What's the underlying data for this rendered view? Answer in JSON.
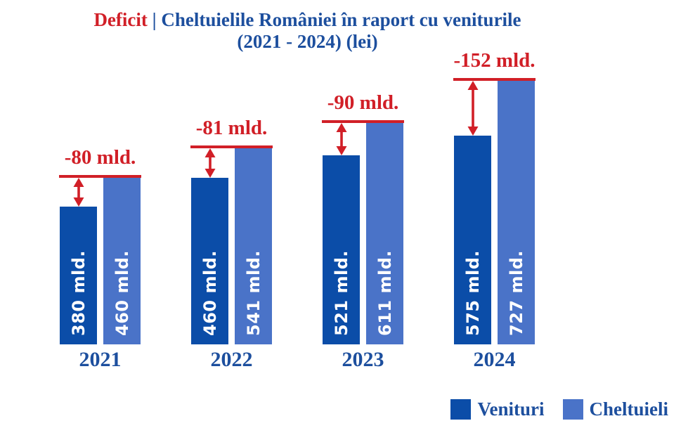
{
  "page": {
    "background": "#ffffff"
  },
  "title": {
    "deficit_word": "Deficit",
    "separator": " | ",
    "main": "Cheltuielile României în raport cu veniturile",
    "subtitle": "(2021 - 2024) (lei)"
  },
  "colors": {
    "deficit_red": "#d11f27",
    "title_blue": "#1d4f9e",
    "venituri_blue": "#0b4da8",
    "cheltuieli_blue": "#4a73c8",
    "bar_label_white": "#ffffff"
  },
  "chart_data": {
    "type": "bar",
    "title": "Deficit | Cheltuielile României în raport cu veniturile (2021 - 2024) (lei)",
    "categories": [
      "2021",
      "2022",
      "2023",
      "2024"
    ],
    "series": [
      {
        "name": "Venituri",
        "color": "#0b4da8",
        "values": [
          380,
          460,
          521,
          575
        ],
        "value_labels": [
          "380 mld.",
          "460 mld.",
          "521 mld.",
          "575 mld."
        ]
      },
      {
        "name": "Cheltuieli",
        "color": "#4a73c8",
        "values": [
          460,
          541,
          611,
          727
        ],
        "value_labels": [
          "460 mld.",
          "541 mld.",
          "611 mld.",
          "727 mld."
        ]
      }
    ],
    "deficit_annotations": {
      "values": [
        -80,
        -81,
        -90,
        -152
      ],
      "labels": [
        "-80 mld.",
        "-81 mld.",
        "-90 mld.",
        "-152 mld."
      ],
      "color": "#d11f27"
    },
    "unit": "mld. lei",
    "ylim": [
      0,
      780
    ],
    "grid": false,
    "legend_position": "bottom-right"
  },
  "legend": {
    "items": [
      {
        "label": "Venituri",
        "color": "#0b4da8"
      },
      {
        "label": "Cheltuieli",
        "color": "#4a73c8"
      }
    ]
  }
}
